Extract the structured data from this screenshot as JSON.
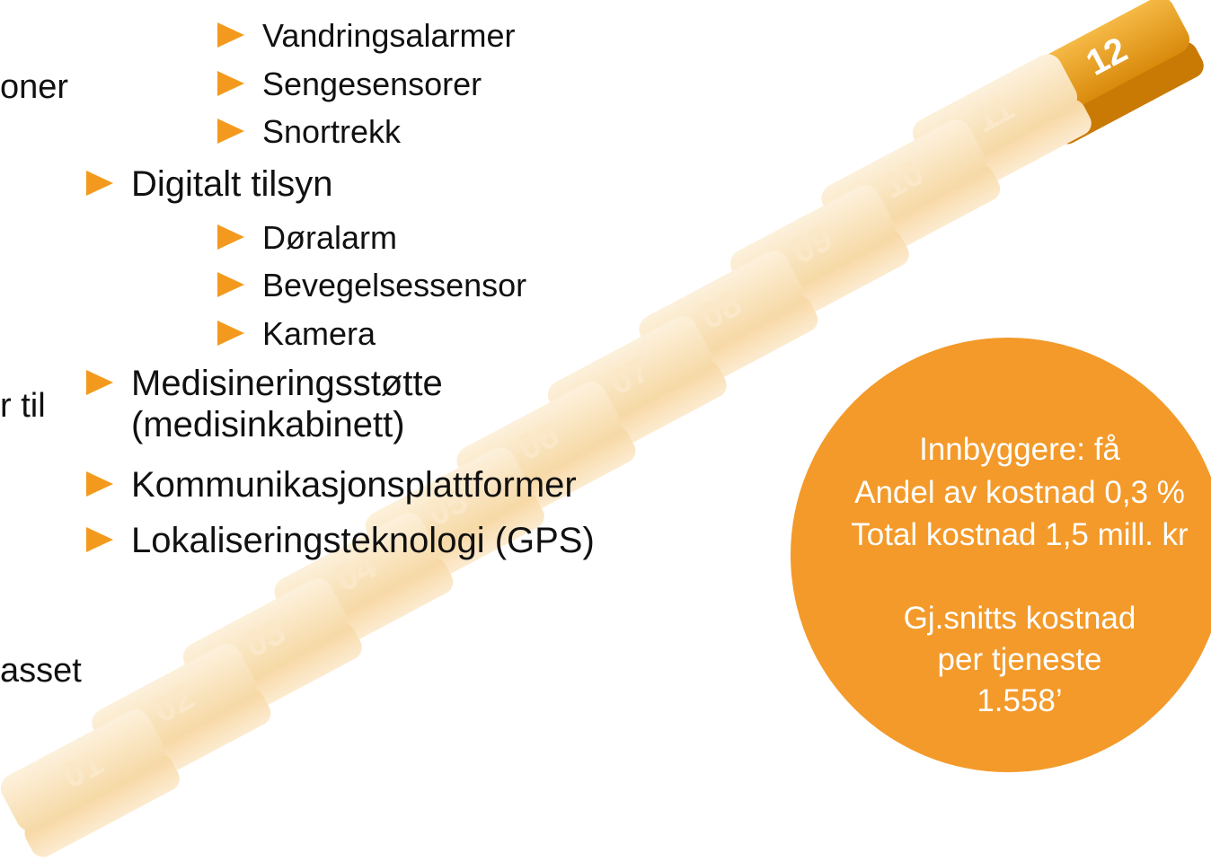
{
  "left_fragments": [
    "oner",
    "r til",
    "asset"
  ],
  "bullets": [
    {
      "level": 2,
      "text": "Vandringsalarmer"
    },
    {
      "level": 2,
      "text": "Sengesensorer"
    },
    {
      "level": 2,
      "text": "Snortrekk"
    },
    {
      "level": 1,
      "text": "Digitalt tilsyn"
    },
    {
      "level": 2,
      "text": "Døralarm"
    },
    {
      "level": 2,
      "text": "Bevegelsessensor"
    },
    {
      "level": 2,
      "text": "Kamera"
    },
    {
      "level": 1,
      "text": "Medisineringsstøtte (medisinkabinett)"
    },
    {
      "level": 1,
      "text": "Kommunikasjonsplattformer"
    },
    {
      "level": 1,
      "text": "Lokaliseringsteknologi (GPS)"
    }
  ],
  "steps": [
    "01",
    "02",
    "03",
    "04",
    "05",
    "06",
    "07",
    "08",
    "09",
    "10",
    "11",
    "12"
  ],
  "circle": {
    "lines": [
      "Innbyggere: få",
      "Andel av kostnad 0,3 %",
      "Total kostnad 1,5 mill. kr",
      "Gj.snitts kostnad",
      "per tjeneste",
      "1.558’"
    ]
  }
}
